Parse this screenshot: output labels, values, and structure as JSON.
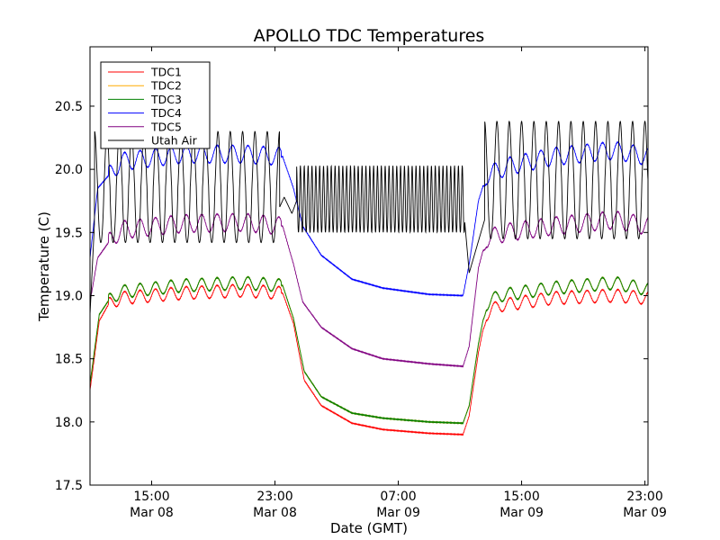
{
  "chart_data": {
    "type": "line",
    "title": "APOLLO TDC Temperatures",
    "xlabel": "Date (GMT)",
    "ylabel": "Temperature (C)",
    "x_units": "hours since Mar 08 11:00 GMT",
    "xlim": [
      0,
      36.2
    ],
    "ylim": [
      17.5,
      20.97
    ],
    "yticks": [
      17.5,
      18.0,
      18.5,
      19.0,
      19.5,
      20.0,
      20.5
    ],
    "ytick_labels": [
      "17.5",
      "18.0",
      "18.5",
      "19.0",
      "19.5",
      "20.0",
      "20.5"
    ],
    "xticks": [
      {
        "x": 4,
        "time": "15:00",
        "date": "Mar 08"
      },
      {
        "x": 12,
        "time": "23:00",
        "date": "Mar 08"
      },
      {
        "x": 20,
        "time": "07:00",
        "date": "Mar 09"
      },
      {
        "x": 28,
        "time": "15:00",
        "date": "Mar 09"
      },
      {
        "x": 36,
        "time": "23:00",
        "date": "Mar 09"
      }
    ],
    "legend_position": "top-left",
    "series": [
      {
        "name": "TDC1",
        "color": "#ff0000",
        "points": [
          [
            0,
            18.25
          ],
          [
            0.6,
            18.8
          ],
          [
            1.2,
            18.93
          ],
          [
            2,
            18.98
          ],
          [
            6,
            19.02
          ],
          [
            10,
            19.04
          ],
          [
            12.5,
            19.02
          ],
          [
            13.2,
            18.78
          ],
          [
            13.9,
            18.33
          ],
          [
            15,
            18.13
          ],
          [
            17,
            17.99
          ],
          [
            19,
            17.94
          ],
          [
            22,
            17.91
          ],
          [
            24.2,
            17.9
          ],
          [
            24.6,
            18.05
          ],
          [
            25.2,
            18.55
          ],
          [
            25.7,
            18.85
          ],
          [
            26.5,
            18.92
          ],
          [
            30,
            18.98
          ],
          [
            34,
            19.0
          ],
          [
            36.2,
            18.98
          ]
        ],
        "ripple": {
          "amplitude": 0.05,
          "period": 1.0,
          "ranges": [
            [
              1.2,
              12.4
            ],
            [
              25.5,
              36.2
            ]
          ]
        }
      },
      {
        "name": "TDC2",
        "color": "#ffaa00",
        "points": [
          [
            0,
            18.3
          ],
          [
            0.6,
            18.85
          ],
          [
            1.2,
            18.96
          ],
          [
            2,
            19.03
          ],
          [
            6,
            19.08
          ],
          [
            10,
            19.1
          ],
          [
            12.5,
            19.08
          ],
          [
            13.2,
            18.82
          ],
          [
            13.9,
            18.4
          ],
          [
            15,
            18.2
          ],
          [
            17,
            18.07
          ],
          [
            19,
            18.03
          ],
          [
            22,
            18.0
          ],
          [
            24.2,
            17.99
          ],
          [
            24.6,
            18.13
          ],
          [
            25.2,
            18.62
          ],
          [
            25.7,
            18.93
          ],
          [
            26.5,
            19.0
          ],
          [
            30,
            19.06
          ],
          [
            34,
            19.1
          ],
          [
            36.2,
            19.05
          ]
        ],
        "ripple": {
          "amplitude": 0.05,
          "period": 1.0,
          "ranges": [
            [
              1.2,
              12.4
            ],
            [
              25.5,
              36.2
            ]
          ]
        }
      },
      {
        "name": "TDC3",
        "color": "#008000",
        "points": [
          [
            0,
            18.3
          ],
          [
            0.6,
            18.85
          ],
          [
            1.2,
            18.96
          ],
          [
            2,
            19.03
          ],
          [
            6,
            19.08
          ],
          [
            10,
            19.1
          ],
          [
            12.5,
            19.08
          ],
          [
            13.2,
            18.82
          ],
          [
            13.9,
            18.4
          ],
          [
            15,
            18.2
          ],
          [
            17,
            18.07
          ],
          [
            19,
            18.03
          ],
          [
            22,
            18.0
          ],
          [
            24.2,
            17.99
          ],
          [
            24.6,
            18.13
          ],
          [
            25.2,
            18.62
          ],
          [
            25.7,
            18.93
          ],
          [
            26.5,
            19.0
          ],
          [
            30,
            19.06
          ],
          [
            34,
            19.1
          ],
          [
            36.2,
            19.05
          ]
        ],
        "ripple": {
          "amplitude": 0.05,
          "period": 1.0,
          "ranges": [
            [
              1.2,
              12.4
            ],
            [
              25.5,
              36.2
            ]
          ]
        }
      },
      {
        "name": "TDC4",
        "color": "#0000ff",
        "points": [
          [
            0,
            19.3
          ],
          [
            0.5,
            19.85
          ],
          [
            1.2,
            19.95
          ],
          [
            2,
            20.06
          ],
          [
            6,
            20.12
          ],
          [
            10,
            20.12
          ],
          [
            12.5,
            20.1
          ],
          [
            13.2,
            19.85
          ],
          [
            13.8,
            19.55
          ],
          [
            15,
            19.32
          ],
          [
            17,
            19.13
          ],
          [
            19,
            19.06
          ],
          [
            22,
            19.01
          ],
          [
            24.2,
            19.0
          ],
          [
            24.6,
            19.25
          ],
          [
            25.2,
            19.75
          ],
          [
            25.7,
            19.95
          ],
          [
            27,
            20.02
          ],
          [
            30,
            20.1
          ],
          [
            34,
            20.15
          ],
          [
            36.2,
            20.1
          ]
        ],
        "ripple": {
          "amplitude": 0.07,
          "period": 1.0,
          "ranges": [
            [
              1.2,
              12.4
            ],
            [
              25.5,
              36.2
            ]
          ]
        }
      },
      {
        "name": "TDC5",
        "color": "#800080",
        "points": [
          [
            0,
            18.95
          ],
          [
            0.5,
            19.3
          ],
          [
            1.2,
            19.42
          ],
          [
            2,
            19.52
          ],
          [
            6,
            19.57
          ],
          [
            10,
            19.58
          ],
          [
            12.5,
            19.55
          ],
          [
            13.2,
            19.25
          ],
          [
            13.8,
            18.95
          ],
          [
            15,
            18.75
          ],
          [
            17,
            18.58
          ],
          [
            19,
            18.5
          ],
          [
            22,
            18.46
          ],
          [
            24.2,
            18.44
          ],
          [
            24.6,
            18.6
          ],
          [
            25.2,
            19.22
          ],
          [
            25.7,
            19.45
          ],
          [
            27,
            19.5
          ],
          [
            30,
            19.55
          ],
          [
            34,
            19.6
          ],
          [
            36.2,
            19.55
          ]
        ],
        "ripple": {
          "amplitude": 0.07,
          "period": 1.0,
          "ranges": [
            [
              1.2,
              12.4
            ],
            [
              25.5,
              36.2
            ]
          ]
        }
      },
      {
        "name": "Utah Air",
        "color": "#000000",
        "oscillation": {
          "segments": [
            {
              "start": 0.3,
              "end": 12.3,
              "period": 0.8,
              "low": 19.42,
              "high": 20.3
            },
            {
              "start": 13.4,
              "end": 24.3,
              "period": 0.25,
              "low": 19.5,
              "high": 20.03
            },
            {
              "start": 25.6,
              "end": 36.2,
              "period": 0.8,
              "low": 19.45,
              "high": 20.38
            }
          ]
        },
        "points": [
          [
            0,
            18.85
          ],
          [
            0.3,
            19.6
          ],
          [
            12.3,
            19.7
          ],
          [
            12.6,
            19.78
          ],
          [
            13.1,
            19.65
          ],
          [
            13.4,
            19.75
          ],
          [
            24.3,
            19.6
          ],
          [
            24.6,
            19.18
          ],
          [
            25.6,
            19.6
          ]
        ]
      }
    ]
  }
}
